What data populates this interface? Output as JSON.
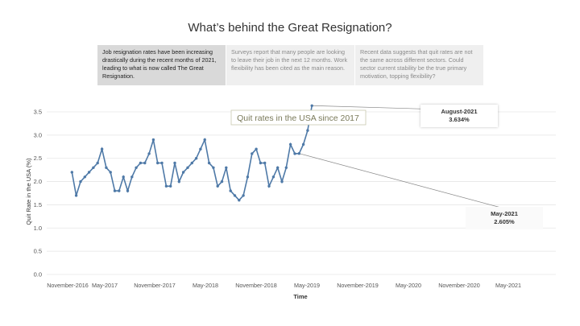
{
  "header": {
    "title": "What’s behind the Great Resignation?"
  },
  "notes": [
    "Job resignation rates have been increasing drastically during the recent months of 2021, leading to what is now called The Great Resignation.",
    "Surveys report that many people are looking to leave their job in the next 12 months. Work flexibility has been cited as the main reason.",
    "Recent data suggests that quit rates are not the same across different sectors. Could sector current stability be the true primary motivation, topping flexibility?"
  ],
  "chart_data": {
    "type": "line",
    "title": "Quit rates in the USA since 2017",
    "xlabel": "Time",
    "ylabel": "Quit Rate in the USA (%)",
    "ylim": [
      0,
      3.7
    ],
    "yticks": [
      "0.0",
      "0.5",
      "1.0",
      "1.5",
      "2.0",
      "2.5",
      "3.0",
      "3.5"
    ],
    "xtick_labels": [
      "November-2016",
      "May-2017",
      "November-2017",
      "May-2018",
      "November-2018",
      "May-2019",
      "November-2019",
      "May-2020",
      "November-2020",
      "May-2021"
    ],
    "grid": true,
    "line_color": "#4e79a7",
    "series": [
      {
        "x": [
          "2016-12",
          "2017-01",
          "2017-02",
          "2017-03",
          "2017-04",
          "2017-05",
          "2017-06",
          "2017-07",
          "2017-08",
          "2017-09",
          "2017-10",
          "2017-11",
          "2017-12",
          "2018-01",
          "2018-02",
          "2018-03",
          "2018-04",
          "2018-05",
          "2018-06",
          "2018-07",
          "2018-08",
          "2018-09",
          "2018-10",
          "2018-11",
          "2018-12",
          "2019-01",
          "2019-02",
          "2019-03",
          "2019-04",
          "2019-05",
          "2019-06",
          "2019-07",
          "2019-08",
          "2019-09",
          "2019-10",
          "2019-11",
          "2019-12",
          "2020-01",
          "2020-02",
          "2020-03",
          "2020-04",
          "2020-05",
          "2020-06",
          "2020-07",
          "2020-08",
          "2020-09",
          "2020-10",
          "2020-11",
          "2020-12",
          "2021-01",
          "2021-02",
          "2021-03",
          "2021-04",
          "2021-05",
          "2021-06",
          "2021-07",
          "2021-08"
        ],
        "values": [
          2.2,
          1.7,
          2.0,
          2.1,
          2.2,
          2.3,
          2.4,
          2.7,
          2.3,
          2.2,
          1.8,
          1.8,
          2.1,
          1.8,
          2.1,
          2.3,
          2.4,
          2.4,
          2.6,
          2.9,
          2.4,
          2.4,
          1.9,
          1.9,
          2.4,
          2.0,
          2.2,
          2.3,
          2.4,
          2.5,
          2.7,
          2.9,
          2.4,
          2.3,
          1.9,
          2.0,
          2.3,
          1.8,
          1.7,
          1.6,
          1.7,
          2.1,
          2.6,
          2.7,
          2.4,
          2.4,
          1.9,
          2.1,
          2.3,
          2.0,
          2.3,
          2.8,
          2.6,
          2.605,
          2.8,
          3.1,
          3.634
        ]
      }
    ],
    "annotations": [
      {
        "label": "August-2021",
        "value": "3.634%"
      },
      {
        "label": "May-2021",
        "value": "2.605%"
      }
    ]
  }
}
